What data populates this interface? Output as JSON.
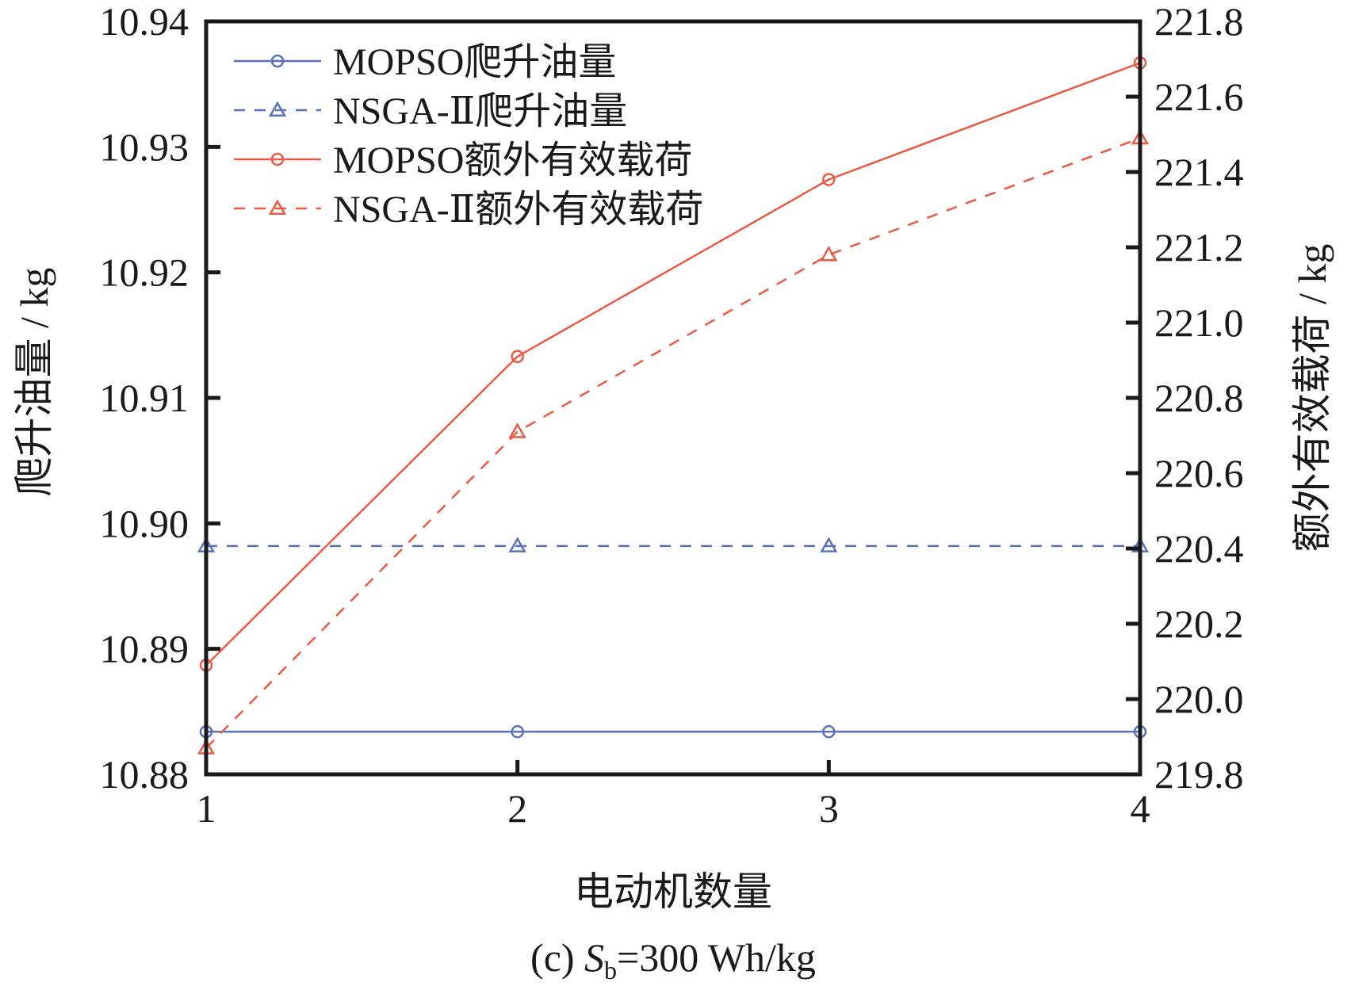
{
  "chart_data": {
    "type": "line",
    "title": "",
    "caption": {
      "prefix": "(c) ",
      "symbol": "S",
      "subscript": "b",
      "suffix": "=300 Wh/kg"
    },
    "xlabel": "电动机数量",
    "ylabel_left": "爬升油量 / kg",
    "ylabel_right": "额外有效载荷 / kg",
    "x": [
      1,
      2,
      3,
      4
    ],
    "xticks": [
      "1",
      "2",
      "3",
      "4"
    ],
    "xlim": [
      1,
      4
    ],
    "ylim_left": [
      10.88,
      10.94
    ],
    "yticks_left": [
      "10.88",
      "10.89",
      "10.90",
      "10.91",
      "10.92",
      "10.93",
      "10.94"
    ],
    "ylim_right": [
      219.8,
      221.8
    ],
    "yticks_right": [
      "219.8",
      "220.0",
      "220.2",
      "220.4",
      "220.6",
      "220.8",
      "221.0",
      "221.2",
      "221.4",
      "221.6",
      "221.8"
    ],
    "grid": false,
    "legend_position": "top-left",
    "series": [
      {
        "name": "MOPSO爬升油量",
        "axis": "left",
        "color": "#5b72b8",
        "dash": "solid",
        "marker": "circle",
        "values": [
          10.8834,
          10.8834,
          10.8834,
          10.8834
        ]
      },
      {
        "name": "NSGA-Ⅱ爬升油量",
        "axis": "left",
        "color": "#5b72b8",
        "dash": "dashed",
        "marker": "triangle",
        "values": [
          10.8982,
          10.8982,
          10.8982,
          10.8982
        ]
      },
      {
        "name": "MOPSO额外有效载荷",
        "axis": "right",
        "color": "#ea5a45",
        "dash": "solid",
        "marker": "circle",
        "values": [
          220.09,
          220.91,
          221.38,
          221.69
        ]
      },
      {
        "name": "NSGA-Ⅱ额外有效载荷",
        "axis": "right",
        "color": "#ea5a45",
        "dash": "dashed",
        "marker": "triangle",
        "values": [
          219.87,
          220.71,
          221.18,
          221.49
        ]
      }
    ]
  }
}
